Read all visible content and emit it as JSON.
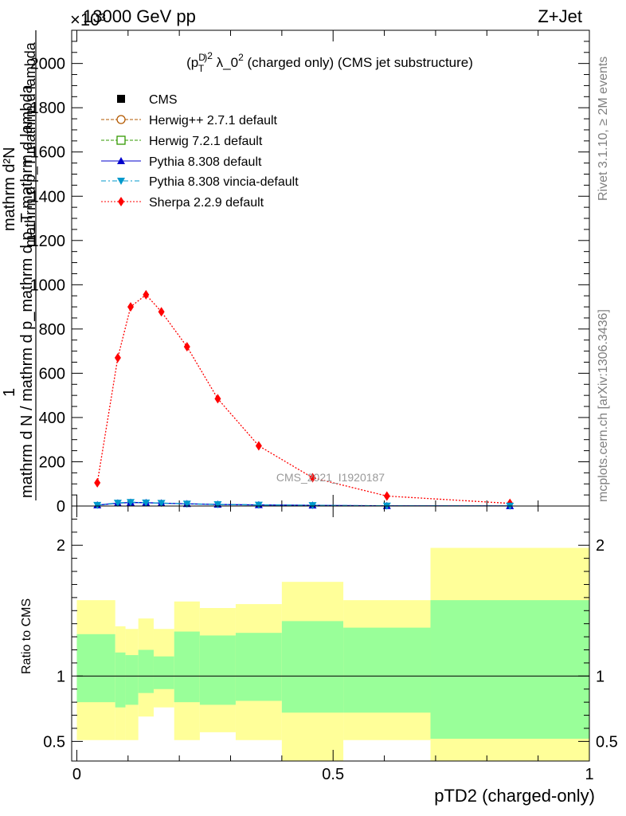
{
  "header": {
    "left": "13000 GeV pp",
    "right": "Z+Jet",
    "exponent": "×10³"
  },
  "side_text": {
    "rivet": "Rivet 3.1.10, ≥ 2M events",
    "mcplots": "mcplots.cern.ch [arXiv:1306.3436]"
  },
  "watermark": "CMS_2021_I1920187",
  "colors": {
    "sherpa": "#ff0000",
    "pythia": "#0000cc",
    "vincia": "#0099cc",
    "herwigpp": "#b35900",
    "herwig7": "#339900",
    "band_inner": "#99ff99",
    "band_outer": "#ffff99"
  },
  "chart_data": [
    {
      "type": "line",
      "title": "(p_T^D)^2 λ_0^2 (charged only) (CMS jet substructure)",
      "ylabel": "1/N dN/d(p_T^D)^2 mathrm d lambda ...",
      "ylabel_lines": [
        "mathrm d N / mathrm d p_mathrm d p_T mathrm d lambda",
        "1",
        "mathrm d p_T mathrm d lambda",
        "mathrm d^2N"
      ],
      "y_scale_note": "×10³",
      "ylim": [
        0,
        2150
      ],
      "xlim": [
        -0.01,
        1.0
      ],
      "yticks": [
        0,
        200,
        400,
        600,
        800,
        1000,
        1200,
        1400,
        1600,
        1800,
        2000
      ],
      "ytick_labels": [
        "0",
        "200",
        "400",
        "600",
        "800",
        "1000",
        "1200",
        "1400",
        "1600",
        "1800",
        "2000"
      ],
      "legend": [
        "CMS",
        "Herwig++ 2.7.1 default",
        "Herwig 7.2.1 default",
        "Pythia 8.308 default",
        "Pythia 8.308 vincia-default",
        "Sherpa 2.2.9 default"
      ],
      "legend_position": "top-left",
      "series": [
        {
          "name": "Sherpa 2.2.9 default",
          "x": [
            0.04,
            0.08,
            0.105,
            0.135,
            0.165,
            0.215,
            0.275,
            0.355,
            0.46,
            0.605,
            0.845
          ],
          "values": [
            105,
            670,
            900,
            955,
            878,
            720,
            485,
            272,
            128,
            45,
            12
          ]
        },
        {
          "name": "Pythia 8.308 vincia-default",
          "x": [
            0.04,
            0.08,
            0.105,
            0.135,
            0.165,
            0.215,
            0.275,
            0.355,
            0.46,
            0.605,
            0.845
          ],
          "values": [
            4,
            14,
            17,
            15,
            13,
            10,
            7,
            5,
            3,
            1,
            0.5
          ]
        },
        {
          "name": "Pythia 8.308 default",
          "x": [
            0.04,
            0.08,
            0.105,
            0.135,
            0.165,
            0.215,
            0.275,
            0.355,
            0.46,
            0.605,
            0.845
          ],
          "values": [
            4,
            13,
            16,
            15,
            13,
            10,
            7,
            5,
            3,
            1,
            0.5
          ]
        }
      ]
    },
    {
      "type": "area",
      "ylabel": "Ratio to CMS",
      "xlabel": "pTD2 (charged-only)",
      "xlim": [
        -0.01,
        1.0
      ],
      "ylim": [
        0.35,
        2.3
      ],
      "xticks": [
        0,
        0.5,
        1
      ],
      "xtick_labels": [
        "0",
        "0.5",
        "1"
      ],
      "yticks": [
        0.5,
        1,
        2
      ],
      "ytick_labels": [
        "0.5",
        "1",
        "2"
      ],
      "bins": [
        {
          "x0": 0.0,
          "x1": 0.075,
          "outer": [
            0.51,
            1.58
          ],
          "inner": [
            0.8,
            1.32
          ]
        },
        {
          "x0": 0.075,
          "x1": 0.095,
          "outer": [
            0.51,
            1.38
          ],
          "inner": [
            0.76,
            1.18
          ]
        },
        {
          "x0": 0.095,
          "x1": 0.12,
          "outer": [
            0.51,
            1.36
          ],
          "inner": [
            0.78,
            1.16
          ]
        },
        {
          "x0": 0.12,
          "x1": 0.15,
          "outer": [
            0.69,
            1.44
          ],
          "inner": [
            0.87,
            1.2
          ]
        },
        {
          "x0": 0.15,
          "x1": 0.19,
          "outer": [
            0.76,
            1.36
          ],
          "inner": [
            0.9,
            1.15
          ]
        },
        {
          "x0": 0.19,
          "x1": 0.24,
          "outer": [
            0.51,
            1.57
          ],
          "inner": [
            0.8,
            1.34
          ]
        },
        {
          "x0": 0.24,
          "x1": 0.31,
          "outer": [
            0.57,
            1.52
          ],
          "inner": [
            0.78,
            1.31
          ]
        },
        {
          "x0": 0.31,
          "x1": 0.4,
          "outer": [
            0.51,
            1.55
          ],
          "inner": [
            0.81,
            1.33
          ]
        },
        {
          "x0": 0.4,
          "x1": 0.52,
          "outer": [
            0.35,
            1.72
          ],
          "inner": [
            0.72,
            1.42
          ]
        },
        {
          "x0": 0.52,
          "x1": 0.69,
          "outer": [
            0.51,
            1.58
          ],
          "inner": [
            0.72,
            1.37
          ]
        },
        {
          "x0": 0.69,
          "x1": 1.0,
          "outer": [
            0.35,
            1.98
          ],
          "inner": [
            0.52,
            1.58
          ]
        }
      ],
      "reference": 1
    }
  ]
}
